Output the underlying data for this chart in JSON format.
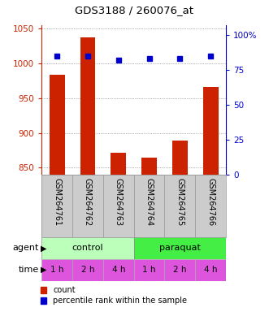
{
  "title": "GDS3188 / 260076_at",
  "samples": [
    "GSM264761",
    "GSM264762",
    "GSM264763",
    "GSM264764",
    "GSM264765",
    "GSM264766"
  ],
  "counts": [
    984,
    1037,
    872,
    864,
    889,
    966
  ],
  "percentiles": [
    85,
    85,
    82,
    83,
    83,
    85
  ],
  "ylim_left": [
    840,
    1055
  ],
  "ylim_right": [
    0,
    107
  ],
  "yticks_left": [
    850,
    900,
    950,
    1000,
    1050
  ],
  "yticks_right": [
    0,
    25,
    50,
    75,
    100
  ],
  "yticklabels_right": [
    "0",
    "25",
    "50",
    "75",
    "100%"
  ],
  "bar_color": "#cc2200",
  "dot_color": "#0000cc",
  "agent_colors": [
    "#bbffbb",
    "#44ee44"
  ],
  "time_labels": [
    "1 h",
    "2 h",
    "4 h",
    "1 h",
    "2 h",
    "4 h"
  ],
  "time_color": "#dd55dd",
  "grid_color": "#888888",
  "left_axis_color": "#cc2200",
  "right_axis_color": "#0000cc",
  "xlabel_bg": "#cccccc",
  "bar_width": 0.5
}
